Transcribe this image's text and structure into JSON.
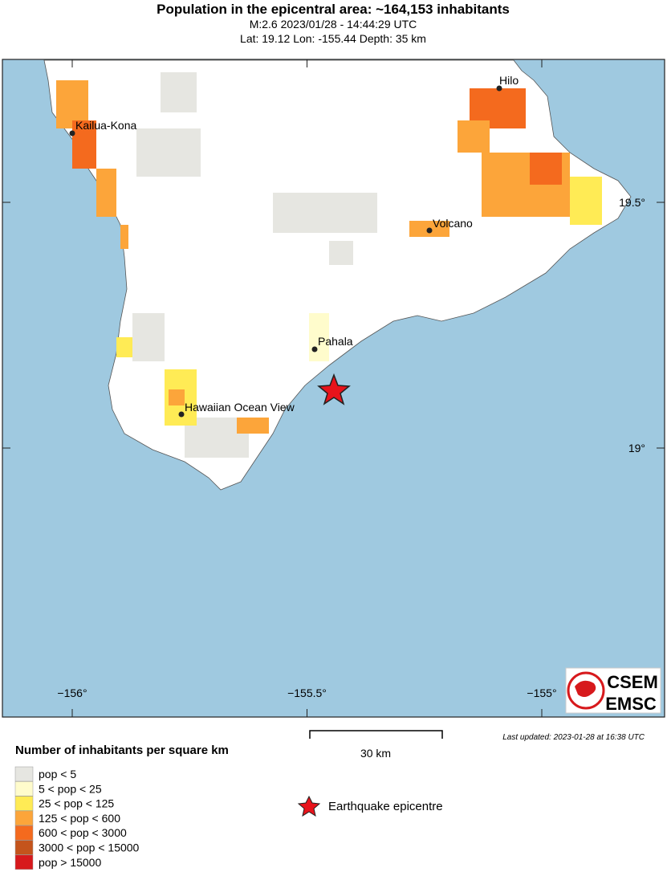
{
  "header": {
    "title": "Population in the epicentral area: ~164,153 inhabitants",
    "line1": "M:2.6 2023/01/28 - 14:44:29 UTC",
    "line2": "Lat: 19.12 Lon: -155.44 Depth: 35 km"
  },
  "map": {
    "lon_ticks": [
      {
        "value": -156,
        "label": "−156°"
      },
      {
        "value": -155.5,
        "label": "−155.5°"
      },
      {
        "value": -155,
        "label": "−155°"
      }
    ],
    "lat_ticks": [
      {
        "value": 19.5,
        "label": "19.5°"
      },
      {
        "value": 19,
        "label": "19°"
      }
    ],
    "cities": [
      "Hilo",
      "Kailua-Kona",
      "Volcano",
      "Pahala",
      "Hawaiian Ocean View"
    ],
    "scale_label": "30 km",
    "last_updated": "Last updated: 2023-01-28 at 16:38 UTC",
    "logo": {
      "top": "CSEM",
      "bottom": "EMSC"
    }
  },
  "legend": {
    "title": "Number of inhabitants per square km",
    "items": [
      {
        "label": "pop < 5",
        "color": "#e6e6e1"
      },
      {
        "label": "5 < pop < 25",
        "color": "#fffccc"
      },
      {
        "label": "25 < pop < 125",
        "color": "#ffeb55"
      },
      {
        "label": "125 < pop < 600",
        "color": "#fca53a"
      },
      {
        "label": "600 < pop < 3000",
        "color": "#f46a1e"
      },
      {
        "label": "3000 < pop < 15000",
        "color": "#c4541c"
      },
      {
        "label": "pop > 15000",
        "color": "#d7191c"
      }
    ],
    "epicentre": "Earthquake epicentre"
  }
}
